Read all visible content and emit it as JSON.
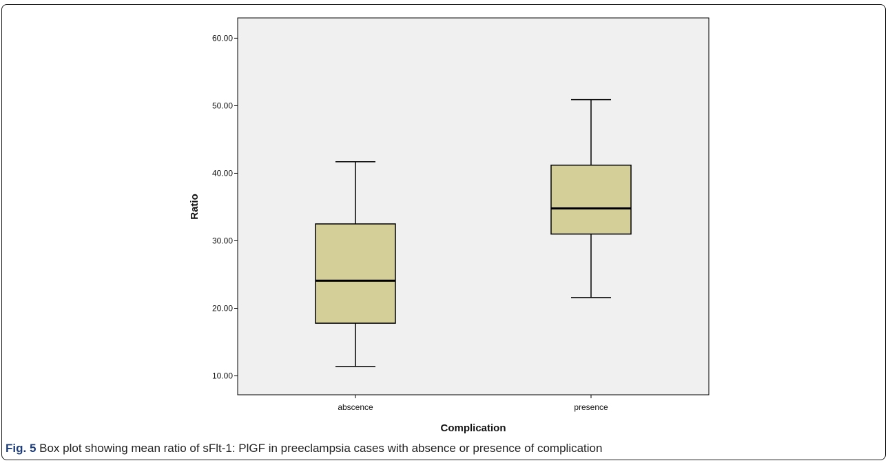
{
  "figure": {
    "caption_label": "Fig. 5",
    "caption_text": "Box plot showing mean ratio of sFlt-1: PlGF in preeclampsia cases with absence or presence of complication"
  },
  "chart_data": {
    "type": "box",
    "title": "",
    "xlabel": "Complication",
    "ylabel": "Ratio",
    "categories": [
      "abscence",
      "presence"
    ],
    "ylim": [
      7.2,
      63.0
    ],
    "yticks": [
      10,
      20,
      30,
      40,
      50,
      60
    ],
    "ytick_labels": [
      "10.00",
      "20.00",
      "30.00",
      "40.00",
      "50.00",
      "60.00"
    ],
    "grid": false,
    "legend": "none",
    "boxes": [
      {
        "category": "abscence",
        "min": 11.4,
        "q1": 17.8,
        "median": 24.1,
        "q3": 32.5,
        "max": 41.7
      },
      {
        "category": "presence",
        "min": 21.6,
        "q1": 31.0,
        "median": 34.8,
        "q3": 41.2,
        "max": 50.9
      }
    ],
    "colors": {
      "plot_background": "#f0f0f0",
      "box_fill": "#d4ce98",
      "line": "#000000",
      "caption_label": "#1d3d7a"
    }
  }
}
